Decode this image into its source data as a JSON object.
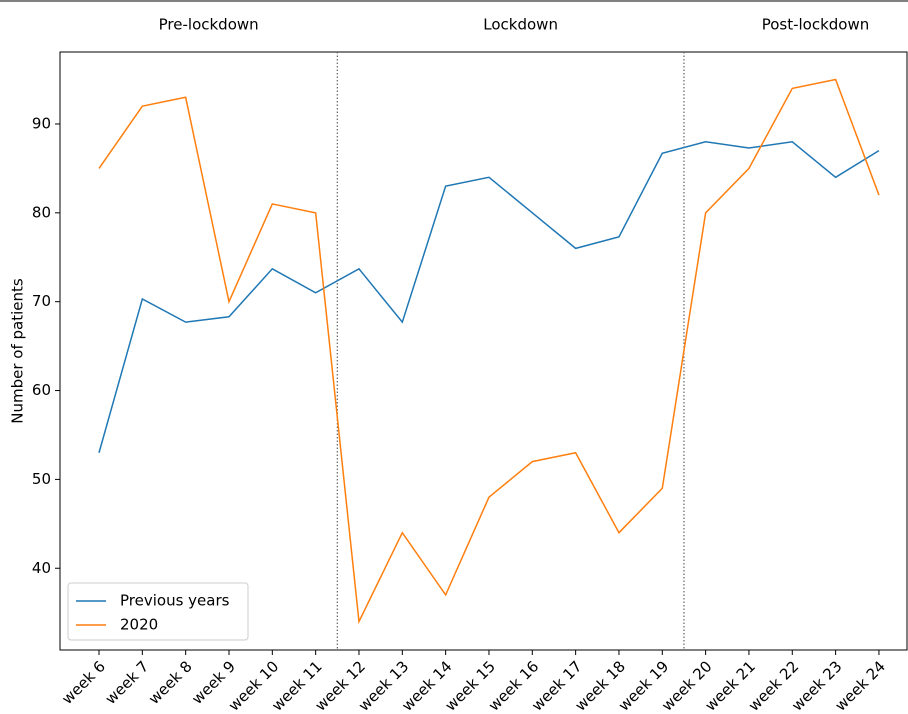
{
  "chart_data": {
    "type": "line",
    "y_label": "Number of patients",
    "categories": [
      "week 6",
      "week 7",
      "week 8",
      "week 9",
      "week 10",
      "week 11",
      "week 12",
      "week 13",
      "week 14",
      "week 15",
      "week 16",
      "week 17",
      "week 18",
      "week 19",
      "week 20",
      "week 21",
      "week 22",
      "week 23",
      "week 24"
    ],
    "series": [
      {
        "name": "Previous years",
        "color": "#1f77b4",
        "values": [
          53,
          70.3,
          67.7,
          68.3,
          73.7,
          71,
          73.7,
          67.7,
          83,
          84,
          80,
          76,
          77.3,
          86.7,
          88,
          87.3,
          88,
          84,
          87
        ]
      },
      {
        "name": "2020",
        "color": "#ff7f0e",
        "values": [
          85,
          92,
          93,
          70,
          81,
          80,
          34,
          44,
          37,
          48,
          52,
          53,
          44,
          49,
          80,
          85,
          94,
          95,
          82
        ]
      }
    ],
    "phases": [
      {
        "label": "Pre-lockdown",
        "start": "week 6"
      },
      {
        "label": "Lockdown",
        "start": "week 12"
      },
      {
        "label": "Post-lockdown",
        "start": "week 20"
      }
    ],
    "ylim": [
      30.8,
      98.1
    ],
    "yticks": [
      40,
      50,
      60,
      70,
      80,
      90
    ],
    "legend": "lower left"
  }
}
